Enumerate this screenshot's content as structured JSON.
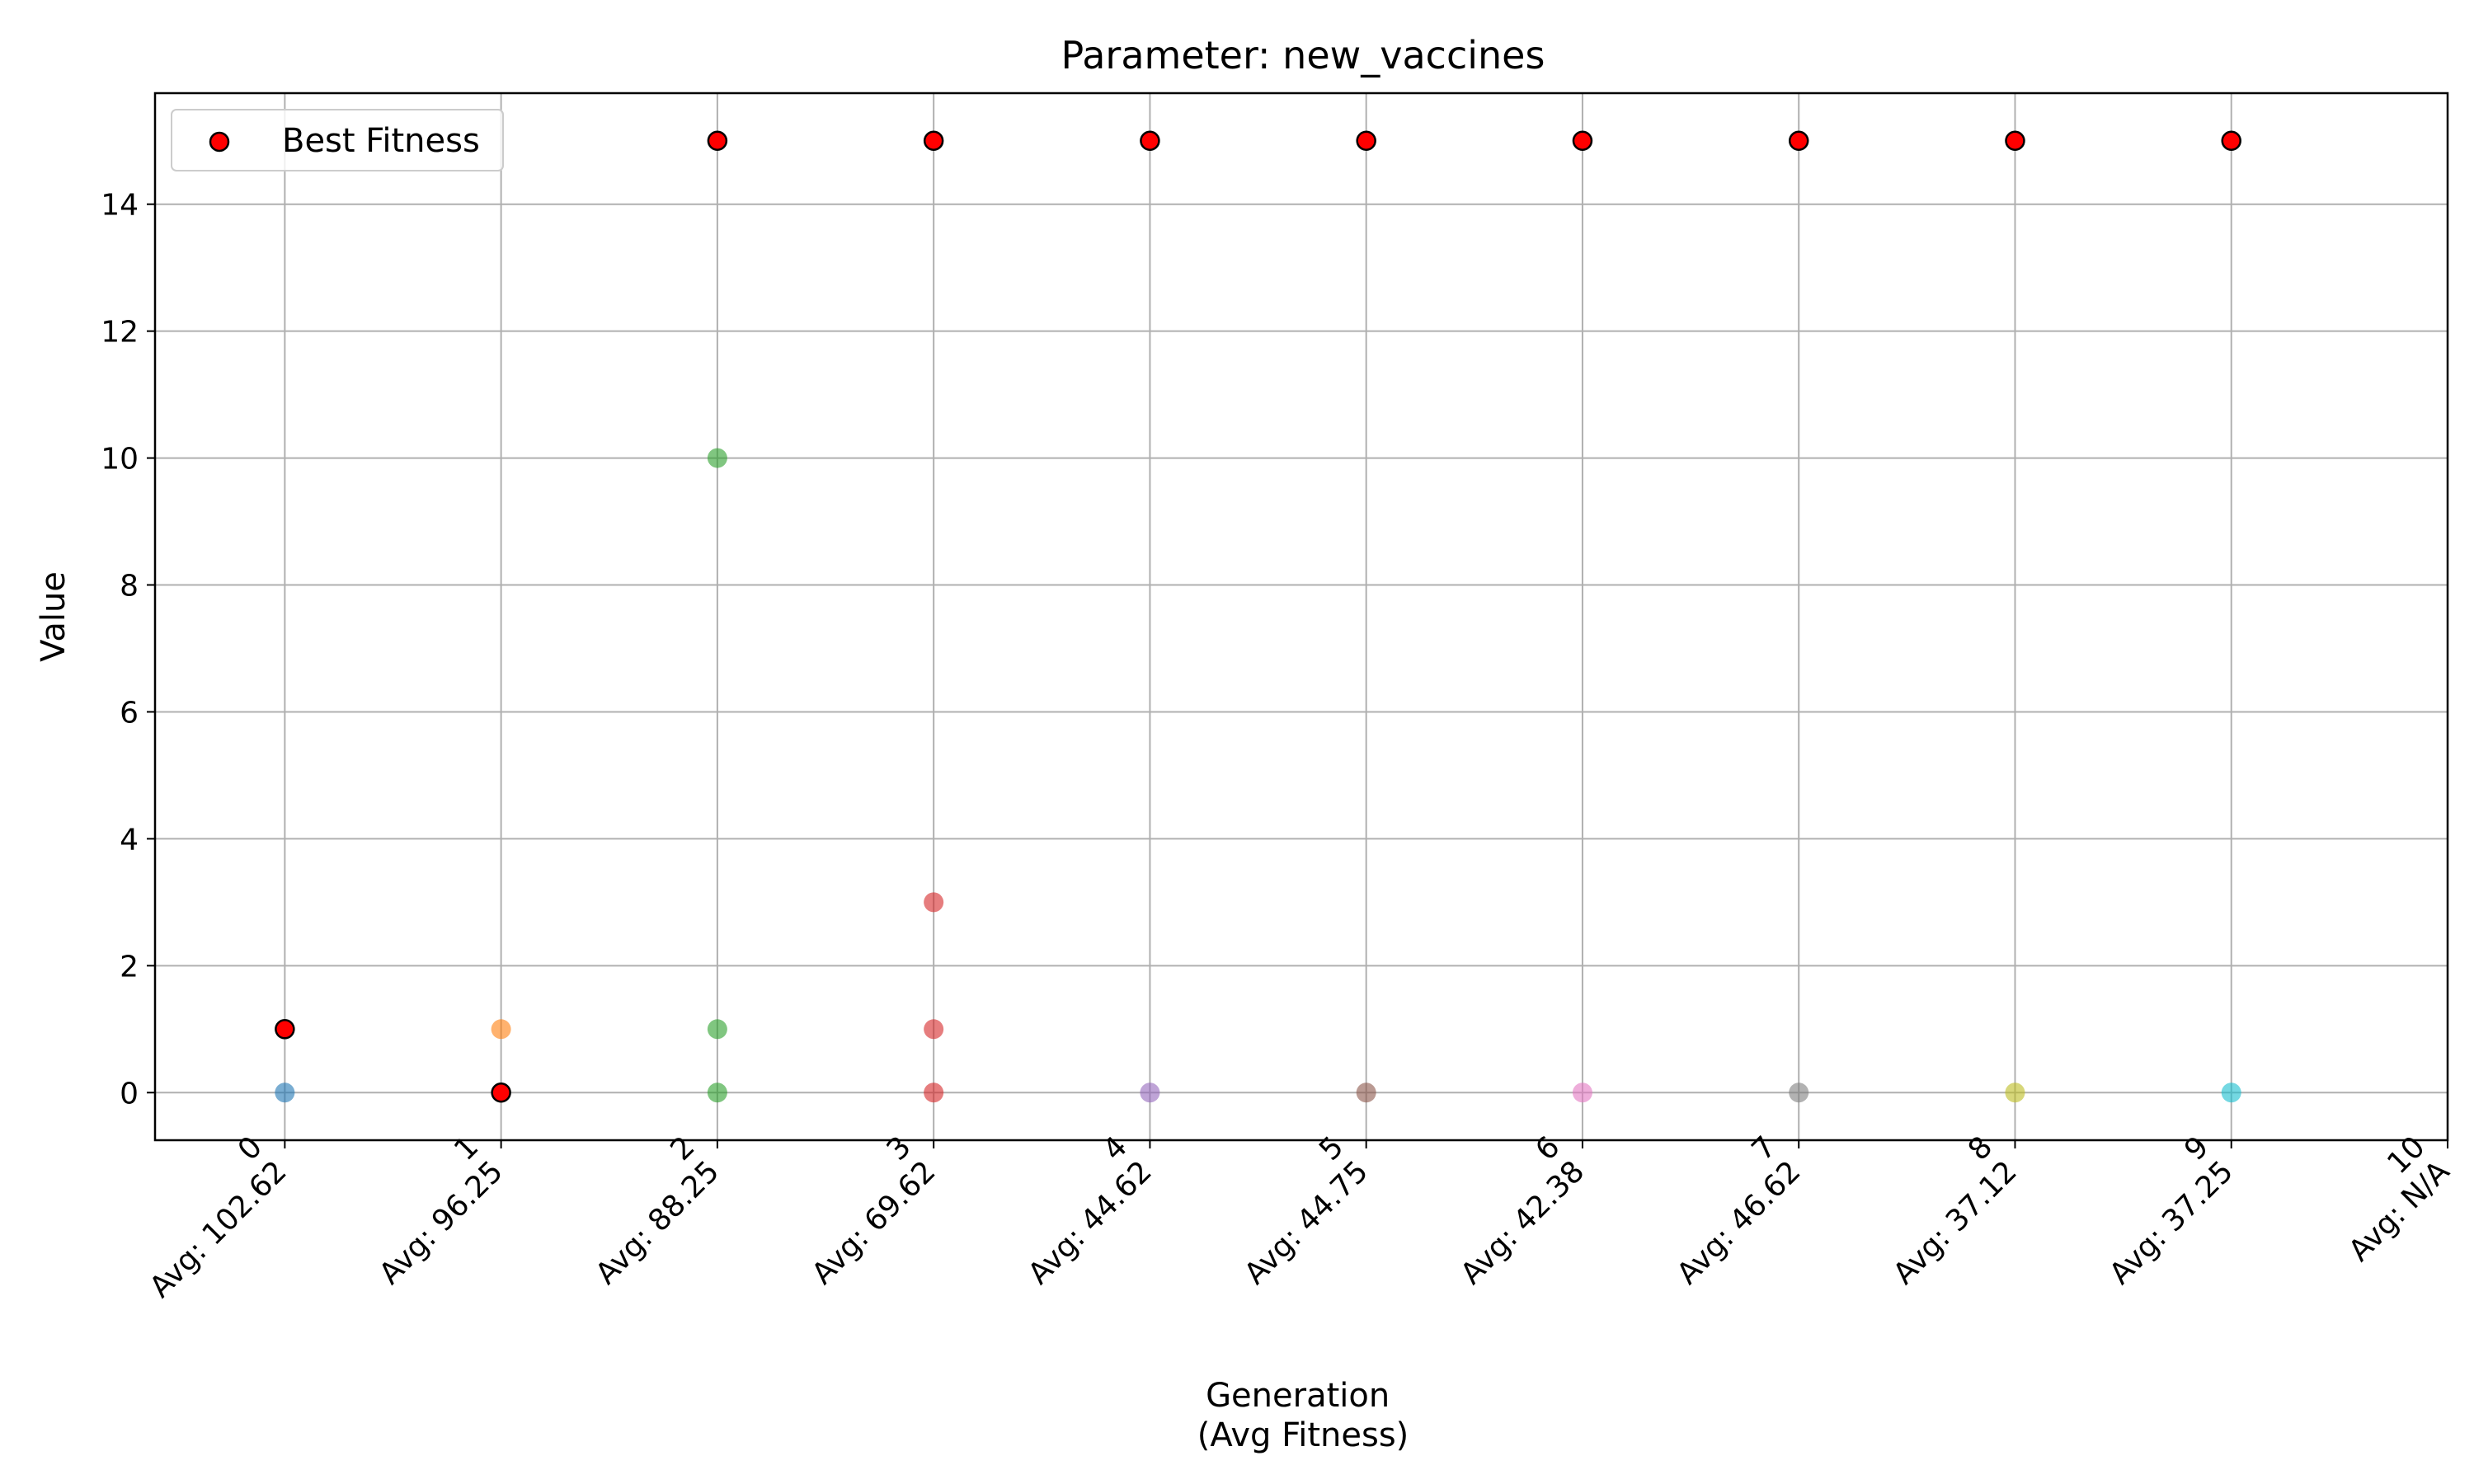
{
  "chart_data": {
    "type": "scatter",
    "title": "Parameter: new_vaccines",
    "xlabel_lines": [
      "Generation",
      "(Avg Fitness)"
    ],
    "ylabel": "Value",
    "xlim": [
      -0.6,
      10.0
    ],
    "ylim": [
      -0.75,
      15.75
    ],
    "grid": true,
    "legend": {
      "position": "top-left",
      "entries": [
        "Best Fitness"
      ]
    },
    "x_ticks": [
      {
        "value": 0,
        "lines": [
          "0",
          "Avg: 102.62"
        ]
      },
      {
        "value": 1,
        "lines": [
          "1",
          "Avg: 96.25"
        ]
      },
      {
        "value": 2,
        "lines": [
          "2",
          "Avg: 88.25"
        ]
      },
      {
        "value": 3,
        "lines": [
          "3",
          "Avg: 69.62"
        ]
      },
      {
        "value": 4,
        "lines": [
          "4",
          "Avg: 44.62"
        ]
      },
      {
        "value": 5,
        "lines": [
          "5",
          "Avg: 44.75"
        ]
      },
      {
        "value": 6,
        "lines": [
          "6",
          "Avg: 42.38"
        ]
      },
      {
        "value": 7,
        "lines": [
          "7",
          "Avg: 46.62"
        ]
      },
      {
        "value": 8,
        "lines": [
          "8",
          "Avg: 37.12"
        ]
      },
      {
        "value": 9,
        "lines": [
          "9",
          "Avg: 37.25"
        ]
      },
      {
        "value": 10,
        "lines": [
          "10",
          "Avg: N/A"
        ]
      }
    ],
    "y_ticks": [
      0,
      2,
      4,
      6,
      8,
      10,
      12,
      14
    ],
    "series": [
      {
        "generation": 0,
        "color": "#1f77b4",
        "values": [
          0
        ]
      },
      {
        "generation": 1,
        "color": "#ff7f0e",
        "values": [
          1,
          0
        ]
      },
      {
        "generation": 2,
        "color": "#2ca02c",
        "values": [
          10,
          1,
          0
        ]
      },
      {
        "generation": 3,
        "color": "#d62728",
        "values": [
          3,
          1,
          0
        ]
      },
      {
        "generation": 4,
        "color": "#9467bd",
        "values": [
          0
        ]
      },
      {
        "generation": 5,
        "color": "#8c564b",
        "values": [
          0
        ]
      },
      {
        "generation": 6,
        "color": "#e377c2",
        "values": [
          0
        ]
      },
      {
        "generation": 7,
        "color": "#7f7f7f",
        "values": [
          0
        ]
      },
      {
        "generation": 8,
        "color": "#bcbd22",
        "values": [
          0
        ]
      },
      {
        "generation": 9,
        "color": "#17becf",
        "values": [
          0
        ]
      }
    ],
    "best_fitness": {
      "name": "Best Fitness",
      "color": "#ff0000",
      "edge_color": "#000000",
      "points": [
        {
          "x": 0,
          "y": 1
        },
        {
          "x": 1,
          "y": 0
        },
        {
          "x": 2,
          "y": 15
        },
        {
          "x": 3,
          "y": 15
        },
        {
          "x": 4,
          "y": 15
        },
        {
          "x": 5,
          "y": 15
        },
        {
          "x": 6,
          "y": 15
        },
        {
          "x": 7,
          "y": 15
        },
        {
          "x": 8,
          "y": 15
        },
        {
          "x": 9,
          "y": 15
        }
      ]
    }
  }
}
